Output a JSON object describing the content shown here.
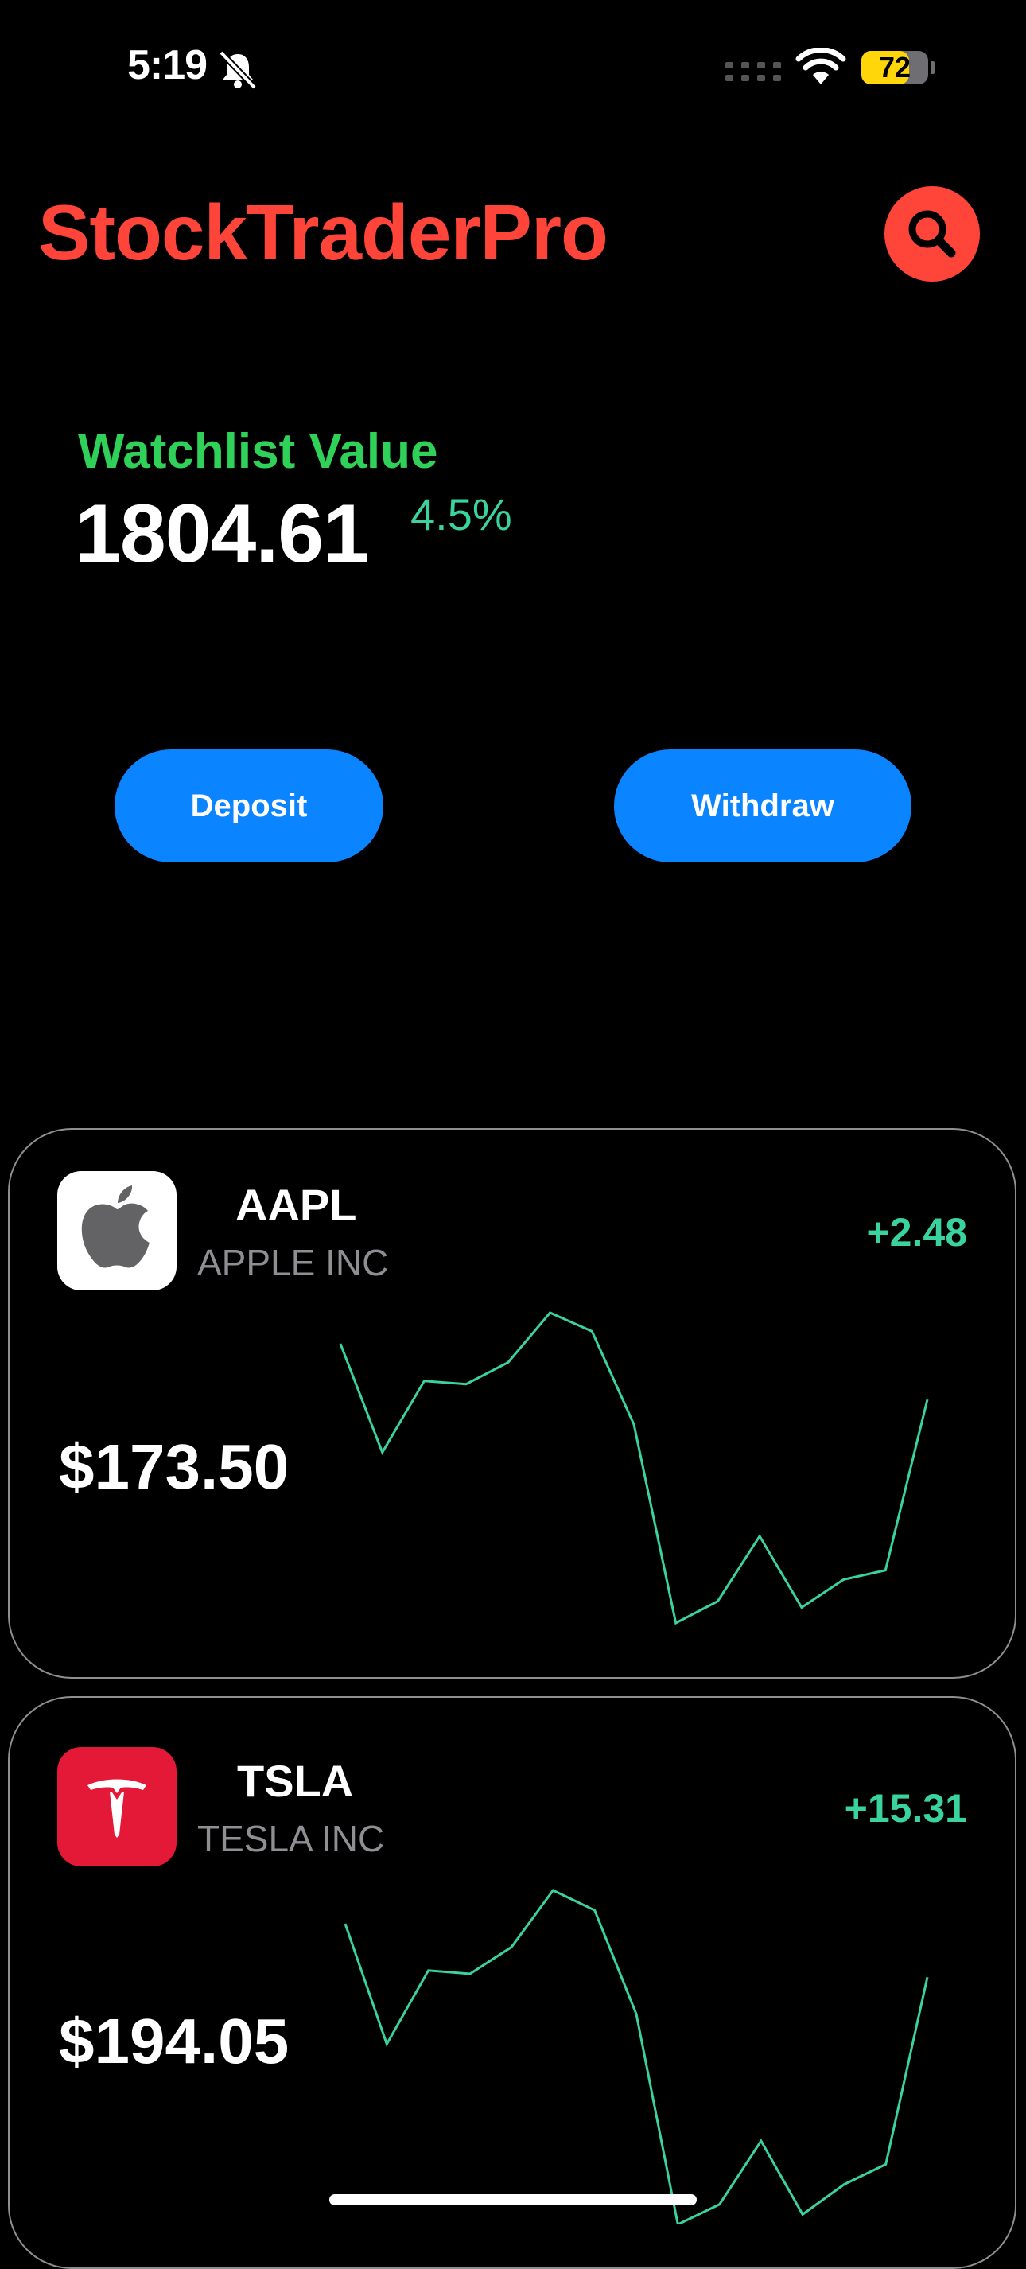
{
  "status_bar": {
    "time": "5:19",
    "battery": "72",
    "icons": [
      "bell-slash-icon",
      "cellular-icon",
      "wifi-icon",
      "battery-icon"
    ]
  },
  "header": {
    "app_title": "StockTraderPro",
    "search_icon": "search-icon"
  },
  "watchlist": {
    "label": "Watchlist Value",
    "value": "1804.61",
    "change": "4.5%"
  },
  "actions": {
    "deposit_label": "Deposit",
    "withdraw_label": "Withdraw"
  },
  "stocks": [
    {
      "symbol": "AAPL",
      "company": "APPLE INC",
      "change": "+2.48",
      "price": "$173.50",
      "logo": "apple-logo-icon",
      "logo_bg": "#ffffff",
      "sparkline": [
        0.1,
        0.45,
        0.22,
        0.23,
        0.16,
        0.0,
        0.06,
        0.36,
        1.0,
        0.93,
        0.72,
        0.95,
        0.86,
        0.83,
        0.28
      ]
    },
    {
      "symbol": "TSLA",
      "company": "TESLA INC",
      "change": "+15.31",
      "price": "$194.05",
      "logo": "tesla-logo-icon",
      "logo_bg": "#e31937",
      "sparkline": [
        0.1,
        0.46,
        0.24,
        0.25,
        0.17,
        0.0,
        0.06,
        0.37,
        1.0,
        0.94,
        0.75,
        0.97,
        0.88,
        0.82,
        0.26
      ]
    }
  ],
  "colors": {
    "accent": "#ff453a",
    "positive": "#3ad29f",
    "label_green": "#30d158",
    "button_blue": "#0a84ff"
  }
}
